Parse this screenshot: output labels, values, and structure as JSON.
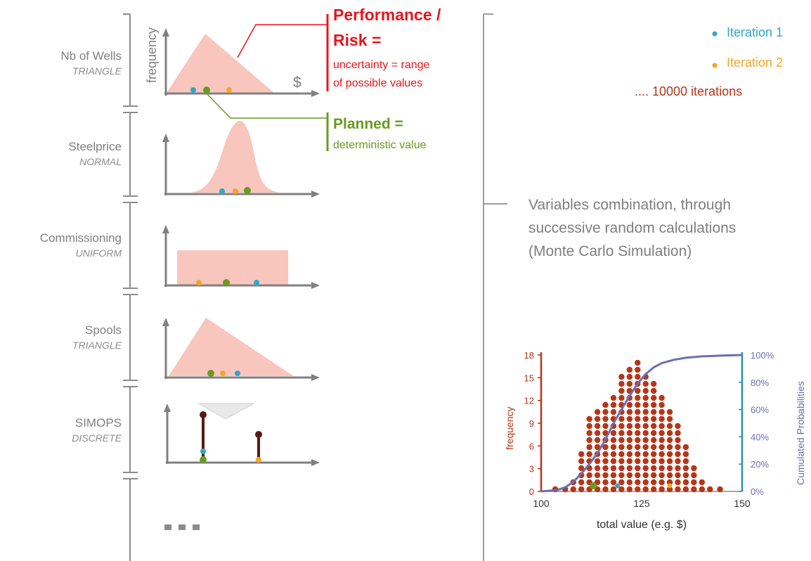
{
  "colors": {
    "iteration1": "#2ea7c9",
    "iteration2": "#f5a623",
    "planned": "#6a9a20",
    "risk": "#e8141c",
    "fill": "#f8c6bd",
    "dot_red": "#b73518",
    "curve": "#6b6fb0",
    "axis_left": "#b73518",
    "axis_right": "#2a8fa8"
  },
  "variables": [
    {
      "name": "Nb of Wells",
      "dist": "TRIANGLE"
    },
    {
      "name": "Steelprice",
      "dist": "NORMAL"
    },
    {
      "name": "Commissioning",
      "dist": "UNIFORM"
    },
    {
      "name": "Spools",
      "dist": "TRIANGLE"
    },
    {
      "name": "SIMOPS",
      "dist": "DISCRETE"
    }
  ],
  "first_chart": {
    "ylabel": "frequency",
    "xlabel": "$"
  },
  "risk": {
    "title_line1": "Performance /",
    "title_line2": "Risk =",
    "desc_line1": "uncertainty = range",
    "desc_line2": "of possible values"
  },
  "planned": {
    "title": "Planned =",
    "desc": "deterministic value"
  },
  "legend": {
    "iteration1": "Iteration 1",
    "iteration2": "Iteration 2",
    "more": ".... 10000 iterations"
  },
  "mc_text": {
    "line1": "Variables combination, through",
    "line2": "successive random calculations",
    "line3": "(Monte Carlo Simulation)"
  },
  "chart_data": {
    "type": "scatter",
    "xlabel": "total value (e.g. $)",
    "ylabel": "frequency",
    "y2label": "Cumulated Probabilities",
    "xlim": [
      100,
      150
    ],
    "ylim": [
      0,
      18
    ],
    "x_ticks": [
      "100",
      "125",
      "150"
    ],
    "y_ticks": [
      "0",
      "3",
      "6",
      "9",
      "12",
      "15",
      "18"
    ],
    "y2_ticks": [
      "0%",
      "20%",
      "40%",
      "60%",
      "80%",
      "100%"
    ],
    "histogram": {
      "x": [
        103.5,
        106,
        108,
        110,
        112,
        114,
        116,
        118,
        120,
        122,
        124,
        126,
        128,
        130,
        132,
        134,
        136,
        138,
        140,
        142,
        144.5
      ],
      "counts": [
        1,
        1,
        2,
        6,
        11,
        12,
        13,
        14,
        17,
        18,
        19,
        17,
        16,
        14,
        12,
        10,
        7,
        4,
        2,
        1,
        1
      ]
    },
    "cumulative_series": {
      "name": "Cumulated Probabilities",
      "x": [
        100,
        104,
        106,
        108,
        110,
        112,
        114,
        116,
        118,
        120,
        122,
        124,
        126,
        128,
        130,
        133,
        136,
        140,
        145,
        150
      ],
      "y": [
        0,
        1,
        3,
        7,
        13,
        20,
        28,
        38,
        50,
        60,
        70,
        79,
        86,
        91,
        94,
        96.5,
        98,
        99,
        99.6,
        100
      ]
    },
    "markers": {
      "planned": 113,
      "iteration1": 119,
      "iteration2": 132
    }
  }
}
